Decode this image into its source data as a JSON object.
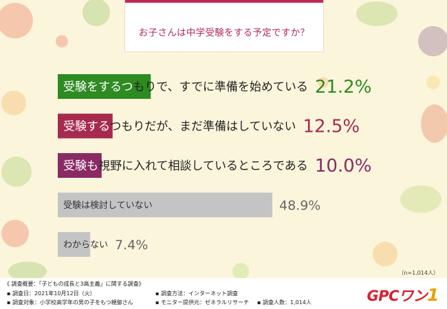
{
  "question": "お子さんは中学受験をする予定ですか？",
  "sample_size": "（n=1,014人）",
  "colors": {
    "accent": "#c12a56",
    "green": "#2e8b22",
    "maroon": "#a62a4f",
    "purple": "#8a2a64",
    "gray": "#c4c4c4",
    "logo_red": "#d7212e",
    "logo_yellow": "#e8a100"
  },
  "chart_data": {
    "type": "bar",
    "orientation": "horizontal",
    "categories": [
      "受験をするつもりで、すでに準備を始めている",
      "受験するつもりだが、まだ準備はしていない",
      "受験も視野に入れて相談しているところである",
      "受験は検討していない",
      "わからない"
    ],
    "values": [
      21.2,
      12.5,
      10.0,
      48.9,
      7.4
    ],
    "value_labels": [
      "21.2%",
      "12.5%",
      "10.0%",
      "48.9%",
      "7.4%"
    ],
    "unit": "%",
    "bar_colors": [
      "#2e8b22",
      "#a62a4f",
      "#8a2a64",
      "#c4c4c4",
      "#c4c4c4"
    ],
    "label_colors": [
      "#2e8b22",
      "#a62a4f",
      "#8a2a64",
      "#666666",
      "#666666"
    ],
    "xlim": [
      0,
      48.9
    ],
    "grid": false,
    "legend": "none"
  },
  "footer": {
    "title": "《 調査概要：「子どもの成長と3高主義」に関する調査》",
    "date": "▪ 調査日：2021年10月12日（火）",
    "method": "▪ 調査方法：インターネット調査",
    "target": "▪ 調査対象：小学校高学年の男の子をもつ親御さん",
    "provider": "▪ モニター提供元：ゼネラルリサーチ",
    "respondents": "▪ 調査人数：1,014人"
  },
  "logo": {
    "main": "GPCワン",
    "one": "1"
  }
}
